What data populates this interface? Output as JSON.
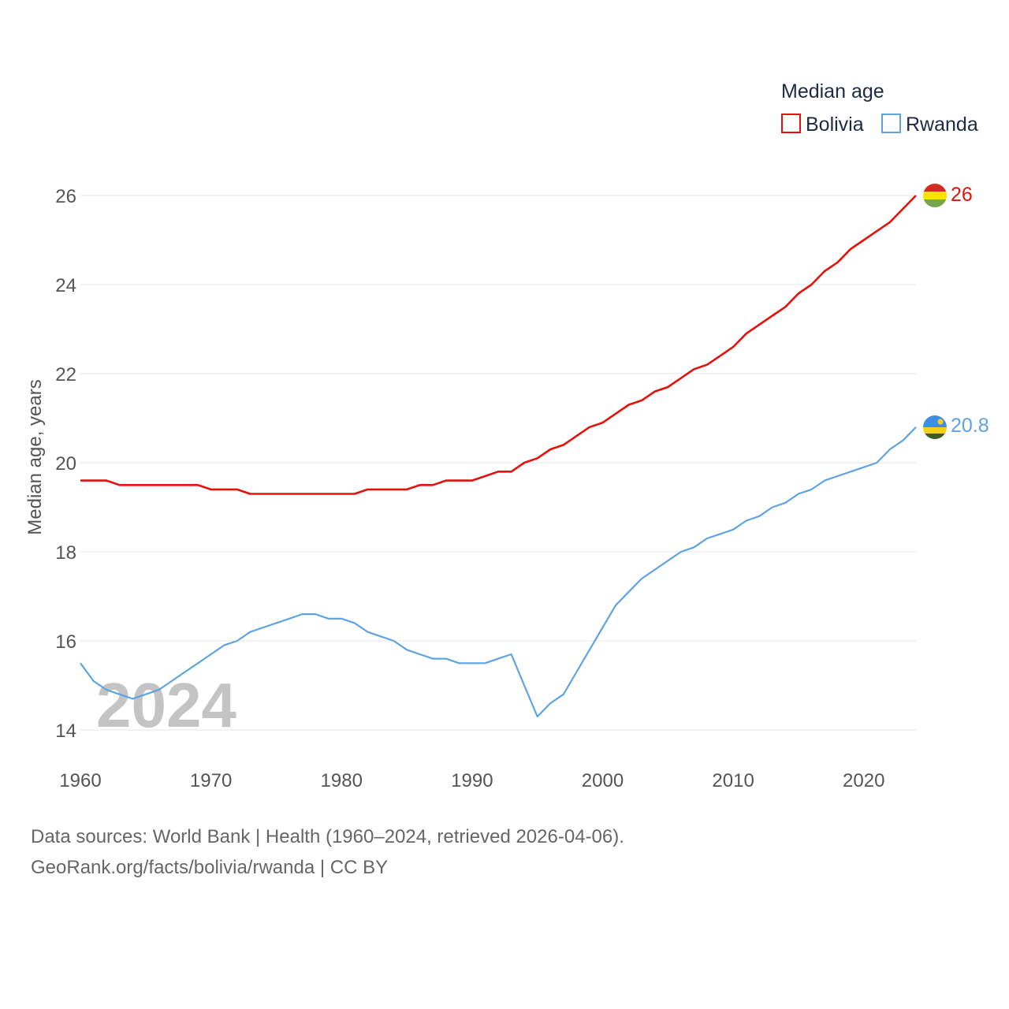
{
  "chart_data": {
    "type": "line",
    "legend_title": "Median age",
    "ylabel": "Median age, years",
    "ylim": [
      14,
      26
    ],
    "yticks": [
      14,
      16,
      18,
      20,
      22,
      24,
      26
    ],
    "xlim": [
      1960,
      2024
    ],
    "xticks": [
      1960,
      1970,
      1980,
      1990,
      2000,
      2010,
      2020
    ],
    "year_watermark": "2024",
    "x": [
      1960,
      1961,
      1962,
      1963,
      1964,
      1965,
      1966,
      1967,
      1968,
      1969,
      1970,
      1971,
      1972,
      1973,
      1974,
      1975,
      1976,
      1977,
      1978,
      1979,
      1980,
      1981,
      1982,
      1983,
      1984,
      1985,
      1986,
      1987,
      1988,
      1989,
      1990,
      1991,
      1992,
      1993,
      1994,
      1995,
      1996,
      1997,
      1998,
      1999,
      2000,
      2001,
      2002,
      2003,
      2004,
      2005,
      2006,
      2007,
      2008,
      2009,
      2010,
      2011,
      2012,
      2013,
      2014,
      2015,
      2016,
      2017,
      2018,
      2019,
      2020,
      2021,
      2022,
      2023,
      2024
    ],
    "series": [
      {
        "name": "Bolivia",
        "color": "#e3120b",
        "end_label": "26",
        "values": [
          19.6,
          19.6,
          19.6,
          19.5,
          19.5,
          19.5,
          19.5,
          19.5,
          19.5,
          19.5,
          19.4,
          19.4,
          19.4,
          19.3,
          19.3,
          19.3,
          19.3,
          19.3,
          19.3,
          19.3,
          19.3,
          19.3,
          19.4,
          19.4,
          19.4,
          19.4,
          19.5,
          19.5,
          19.6,
          19.6,
          19.6,
          19.7,
          19.8,
          19.8,
          20.0,
          20.1,
          20.3,
          20.4,
          20.6,
          20.8,
          20.9,
          21.1,
          21.3,
          21.4,
          21.6,
          21.7,
          21.9,
          22.1,
          22.2,
          22.4,
          22.6,
          22.9,
          23.1,
          23.3,
          23.5,
          23.8,
          24.0,
          24.3,
          24.5,
          24.8,
          25.0,
          25.2,
          25.4,
          25.7,
          26.0
        ]
      },
      {
        "name": "Rwanda",
        "color": "#5ea4e3",
        "end_label": "20.8",
        "values": [
          15.5,
          15.1,
          14.9,
          14.8,
          14.7,
          14.8,
          14.9,
          15.1,
          15.3,
          15.5,
          15.7,
          15.9,
          16.0,
          16.2,
          16.3,
          16.4,
          16.5,
          16.6,
          16.6,
          16.5,
          16.5,
          16.4,
          16.2,
          16.1,
          16.0,
          15.8,
          15.7,
          15.6,
          15.6,
          15.5,
          15.5,
          15.5,
          15.6,
          15.7,
          15.0,
          14.3,
          14.6,
          14.8,
          15.3,
          15.8,
          16.3,
          16.8,
          17.1,
          17.4,
          17.6,
          17.8,
          18.0,
          18.1,
          18.3,
          18.4,
          18.5,
          18.7,
          18.8,
          19.0,
          19.1,
          19.3,
          19.4,
          19.6,
          19.7,
          19.8,
          19.9,
          20.0,
          20.3,
          20.5,
          20.8
        ]
      }
    ]
  },
  "sources": {
    "line1": "Data sources: World Bank | Health (1960–2024, retrieved 2026-04-06).",
    "line2": "GeoRank.org/facts/bolivia/rwanda | CC BY"
  },
  "flags": {
    "bolivia": {
      "top": "#d52b1e",
      "middle": "#f9e300",
      "bottom": "#79a54c"
    },
    "rwanda": {
      "top": "#3d8ee5",
      "middle": "#f2d11e",
      "bottom": "#3f5e22",
      "sun": "#f2d11e"
    }
  }
}
